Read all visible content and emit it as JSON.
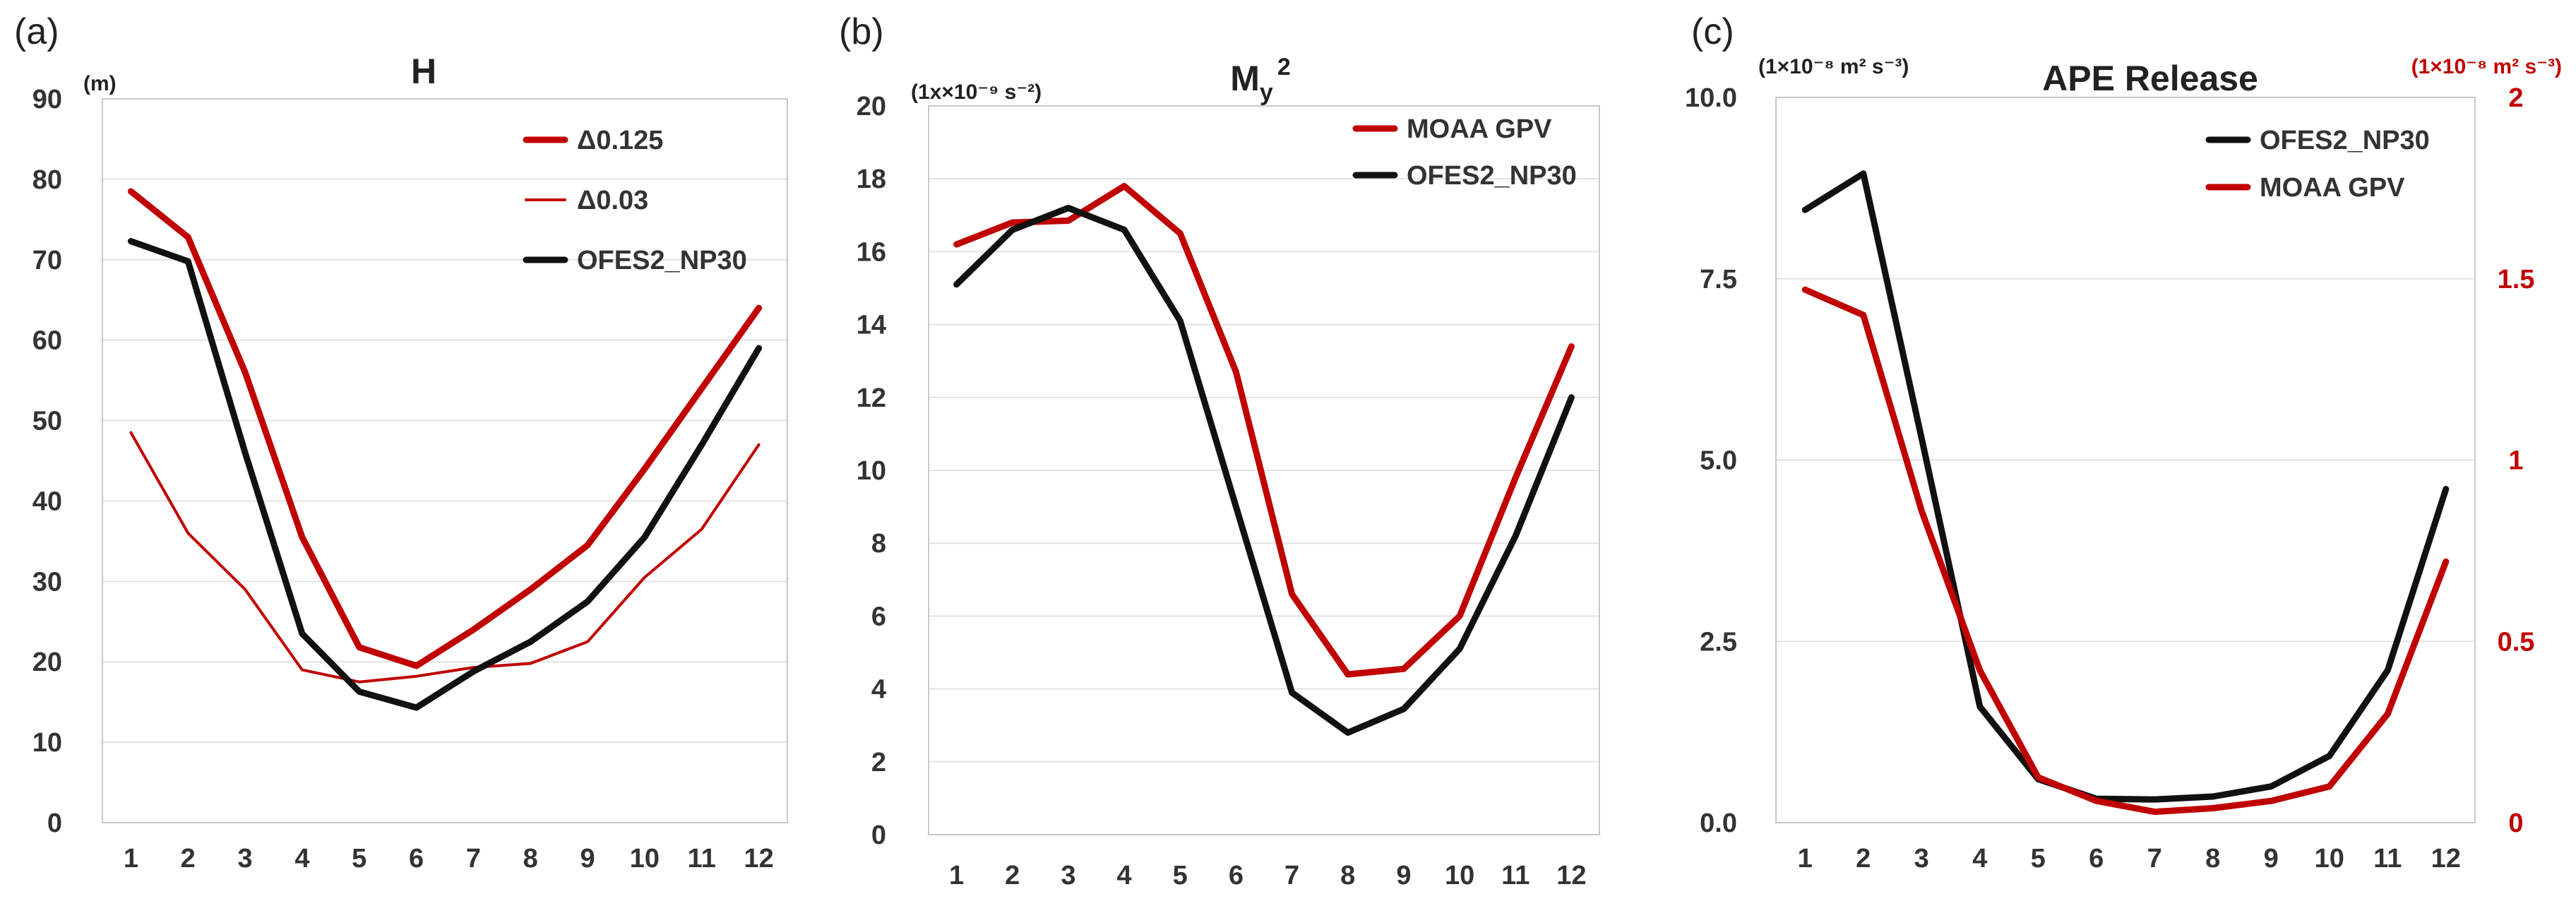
{
  "colors": {
    "red": "#c00000",
    "black": "#111111"
  },
  "chart_data": [
    {
      "type": "line",
      "panel": "(a)",
      "title": "H",
      "ylabel": "(m)",
      "xlabel": "",
      "categories": [
        "1",
        "2",
        "3",
        "4",
        "5",
        "6",
        "7",
        "8",
        "9",
        "10",
        "11",
        "12"
      ],
      "ylim": [
        0,
        90
      ],
      "yticks": [
        "0",
        "10",
        "20",
        "30",
        "40",
        "50",
        "60",
        "70",
        "80",
        "90"
      ],
      "grid": true,
      "legend_position": "top-right",
      "series": [
        {
          "name": "Δ0.125",
          "color": "#c00000",
          "width": "thick",
          "values": [
            78.5,
            72.8,
            56,
            35.5,
            21.8,
            19.5,
            24,
            29,
            34.5,
            44,
            54,
            64
          ]
        },
        {
          "name": "Δ0.03",
          "color": "#c00000",
          "width": "thin",
          "values": [
            48.5,
            36,
            29,
            19,
            17.5,
            18.2,
            19.3,
            19.8,
            22.5,
            30.5,
            36.5,
            47
          ]
        },
        {
          "name": "OFES2_NP30",
          "color": "#111111",
          "width": "thick",
          "values": [
            72.3,
            69.8,
            46,
            23.5,
            16.3,
            14.3,
            18.8,
            22.5,
            27.5,
            35.5,
            47,
            59
          ]
        }
      ]
    },
    {
      "type": "line",
      "panel": "(b)",
      "title": "M",
      "title_sub": "y",
      "title_sup": "2",
      "ylabel": "(1x×10⁻⁹ s⁻²)",
      "xlabel": "",
      "categories": [
        "1",
        "2",
        "3",
        "4",
        "5",
        "6",
        "7",
        "8",
        "9",
        "10",
        "11",
        "12"
      ],
      "ylim": [
        0,
        20
      ],
      "yticks": [
        "0",
        "2",
        "4",
        "6",
        "8",
        "10",
        "12",
        "14",
        "16",
        "18",
        "20"
      ],
      "grid": true,
      "legend_position": "top-right",
      "series": [
        {
          "name": "MOAA GPV",
          "color": "#c00000",
          "width": "thick",
          "values": [
            16.2,
            16.8,
            16.85,
            17.8,
            16.5,
            12.7,
            6.6,
            4.4,
            4.55,
            6,
            9.8,
            13.4
          ]
        },
        {
          "name": "OFES2_NP30",
          "color": "#111111",
          "width": "thick",
          "values": [
            15.1,
            16.6,
            17.2,
            16.6,
            14.1,
            9,
            3.9,
            2.8,
            3.45,
            5.1,
            8.2,
            12
          ]
        }
      ]
    },
    {
      "type": "line",
      "panel": "(c)",
      "title": "APE Release",
      "ylabel": "(1×10⁻⁸ m² s⁻³)",
      "y2label": "(1×10⁻⁸ m² s⁻³)",
      "xlabel": "",
      "categories": [
        "1",
        "2",
        "3",
        "4",
        "5",
        "6",
        "7",
        "8",
        "9",
        "10",
        "11",
        "12"
      ],
      "ylim": [
        0,
        10
      ],
      "yticks": [
        "0.0",
        "2.5",
        "5.0",
        "7.5",
        "10.0"
      ],
      "y2lim": [
        0,
        2
      ],
      "y2ticks": [
        "0",
        "0.5",
        "1",
        "1.5",
        "2"
      ],
      "grid": true,
      "legend_position": "top-right",
      "series": [
        {
          "name": "OFES2_NP30",
          "color": "#111111",
          "width": "thick",
          "axis": "left",
          "values": [
            8.45,
            8.95,
            5.3,
            1.6,
            0.6,
            0.33,
            0.32,
            0.36,
            0.5,
            0.92,
            2.1,
            4.6
          ]
        },
        {
          "name": "MOAA GPV",
          "color": "#c00000",
          "width": "thick",
          "axis": "right",
          "values": [
            1.47,
            1.4,
            0.86,
            0.42,
            0.125,
            0.06,
            0.03,
            0.04,
            0.06,
            0.1,
            0.3,
            0.72
          ]
        }
      ]
    }
  ]
}
